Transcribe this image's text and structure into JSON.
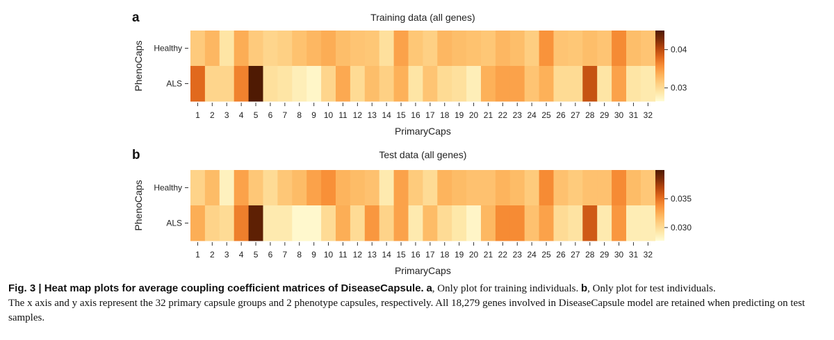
{
  "chart_data": [
    {
      "panel": "a",
      "type": "heatmap",
      "title": "Training data (all genes)",
      "xlabel": "PrimaryCaps",
      "ylabel": "PhenoCaps",
      "x_categories": [
        "1",
        "2",
        "3",
        "4",
        "5",
        "6",
        "7",
        "8",
        "9",
        "10",
        "11",
        "12",
        "13",
        "14",
        "15",
        "16",
        "17",
        "18",
        "19",
        "20",
        "21",
        "22",
        "23",
        "24",
        "25",
        "26",
        "27",
        "28",
        "29",
        "30",
        "31",
        "32"
      ],
      "y_categories": [
        "Healthy",
        "ALS"
      ],
      "values": [
        [
          0.0315,
          0.033,
          0.029,
          0.0338,
          0.0315,
          0.0305,
          0.031,
          0.0322,
          0.033,
          0.0338,
          0.0325,
          0.032,
          0.0318,
          0.0295,
          0.0345,
          0.0318,
          0.031,
          0.033,
          0.0325,
          0.0322,
          0.0318,
          0.033,
          0.0325,
          0.0312,
          0.0355,
          0.032,
          0.0318,
          0.0325,
          0.032,
          0.036,
          0.0325,
          0.032
        ],
        [
          0.038,
          0.0305,
          0.0305,
          0.0365,
          0.047,
          0.0295,
          0.029,
          0.028,
          0.0272,
          0.0305,
          0.034,
          0.03,
          0.0325,
          0.031,
          0.0335,
          0.029,
          0.032,
          0.03,
          0.0295,
          0.028,
          0.0335,
          0.0345,
          0.0345,
          0.032,
          0.0335,
          0.03,
          0.03,
          0.0395,
          0.029,
          0.0345,
          0.029,
          0.0285
        ]
      ],
      "vmin": 0.0265,
      "vmax": 0.045,
      "colorbar_ticks": [
        "0.03",
        "0.04"
      ],
      "colorbar_tick_values": [
        0.03,
        0.04
      ]
    },
    {
      "panel": "b",
      "type": "heatmap",
      "title": "Test data (all genes)",
      "xlabel": "PrimaryCaps",
      "ylabel": "PhenoCaps",
      "x_categories": [
        "1",
        "2",
        "3",
        "4",
        "5",
        "6",
        "7",
        "8",
        "9",
        "10",
        "11",
        "12",
        "13",
        "14",
        "15",
        "16",
        "17",
        "18",
        "19",
        "20",
        "21",
        "22",
        "23",
        "24",
        "25",
        "26",
        "27",
        "28",
        "29",
        "30",
        "31",
        "32"
      ],
      "y_categories": [
        "Healthy",
        "ALS"
      ],
      "values": [
        [
          0.0305,
          0.0318,
          0.0285,
          0.033,
          0.0312,
          0.03,
          0.0312,
          0.0318,
          0.033,
          0.0338,
          0.0322,
          0.0318,
          0.0315,
          0.029,
          0.033,
          0.031,
          0.03,
          0.0322,
          0.0318,
          0.0315,
          0.0315,
          0.0322,
          0.0318,
          0.031,
          0.034,
          0.0315,
          0.031,
          0.0315,
          0.0315,
          0.034,
          0.0318,
          0.0312
        ],
        [
          0.0325,
          0.0305,
          0.03,
          0.0345,
          0.0395,
          0.029,
          0.029,
          0.028,
          0.028,
          0.03,
          0.0325,
          0.03,
          0.0335,
          0.0305,
          0.033,
          0.029,
          0.0318,
          0.03,
          0.0292,
          0.0282,
          0.032,
          0.034,
          0.034,
          0.0315,
          0.033,
          0.03,
          0.0295,
          0.036,
          0.029,
          0.0335,
          0.0288,
          0.0288
        ]
      ],
      "vmin": 0.0277,
      "vmax": 0.04,
      "colorbar_ticks": [
        "0.030",
        "0.035"
      ],
      "colorbar_tick_values": [
        0.03,
        0.035
      ]
    }
  ],
  "colormap": [
    "#fffcd6",
    "#fee7a8",
    "#fecf82",
    "#fdb25a",
    "#f88f37",
    "#e0681c",
    "#b6460c",
    "#7d2c07",
    "#4f1a03"
  ],
  "caption": {
    "fig_label": "Fig. 3 | Heat map plots for average coupling coefficient matrices of DiseaseCapsule.",
    "a_label": "a",
    "a_text": ", Only plot for training individuals.",
    "b_label": "b",
    "b_text": ", Only plot for test individuals.",
    "line2": "The x axis and y axis represent the 32 primary capsule groups and 2 phenotype capsules, respectively. All 18,279 genes involved in DiseaseCapsule model are retained when predicting on test samples."
  }
}
